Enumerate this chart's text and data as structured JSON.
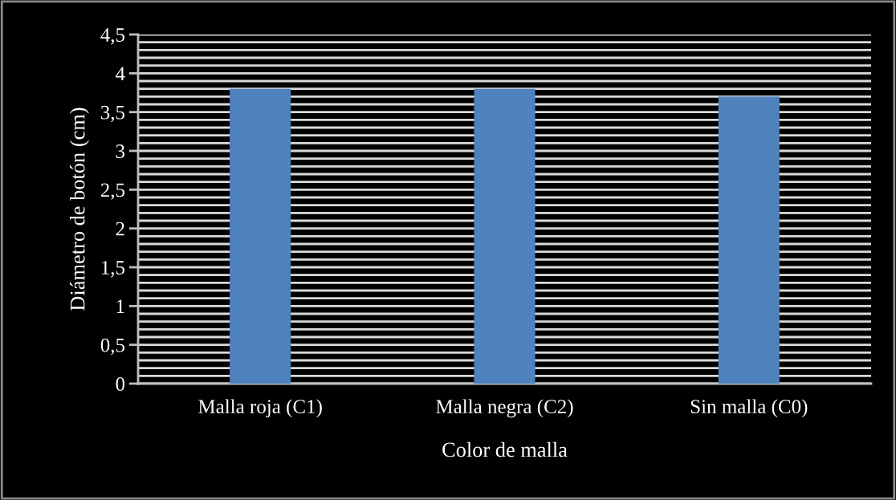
{
  "chart_data": {
    "type": "bar",
    "xlabel": "Color de malla",
    "ylabel": "Diámetro de botón (cm)",
    "categories": [
      "Malla roja (C1)",
      "Malla negra (C2)",
      "Sin malla (C0)"
    ],
    "values": [
      3.8,
      3.8,
      3.7
    ],
    "color": "#4f81bd",
    "ylim": [
      0,
      4.5
    ],
    "yticks": [
      0,
      {
        "value": 0.5,
        "label": "0,5"
      },
      1,
      {
        "value": 1.5,
        "label": "1,5"
      },
      2,
      {
        "value": 2.5,
        "label": "2,5"
      },
      3,
      {
        "value": 3.5,
        "label": "3,5"
      },
      4,
      {
        "value": 4.5,
        "label": "4,5"
      }
    ],
    "grid": "y"
  }
}
